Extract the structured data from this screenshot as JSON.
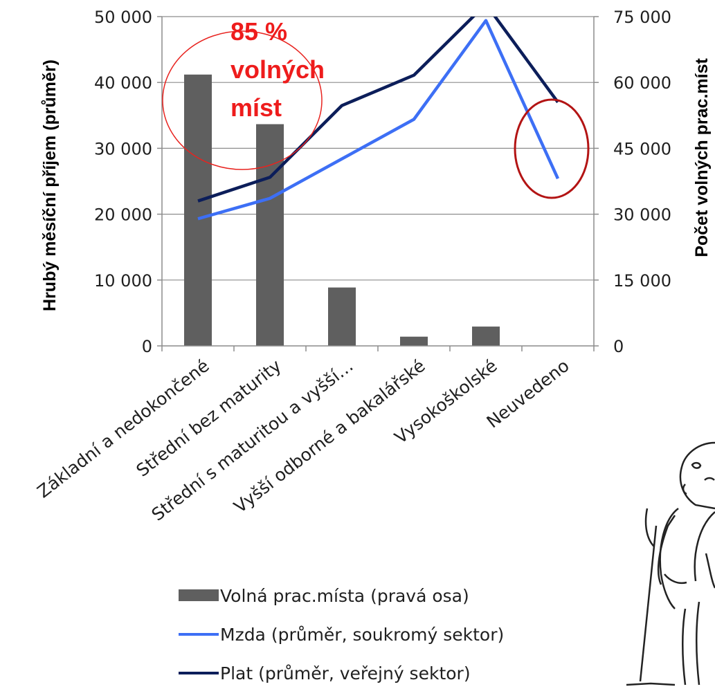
{
  "chart_data": {
    "type": "bar+line",
    "categories": [
      "Základní a nedokončené",
      "Střední bez maturity",
      "Střední s maturitou a vyšší…",
      "Vyšší odborné a bakalářské",
      "Vysokoškolské",
      "Neuvedeno"
    ],
    "bar_series": {
      "name": "Volná prac.místa (pravá osa)",
      "axis": "right",
      "color": "#5f5f5f",
      "values": [
        61800,
        50500,
        13300,
        2100,
        4400,
        null
      ]
    },
    "line_series": [
      {
        "name": "Mzda (průměr, soukromý sektor)",
        "axis": "left",
        "color": "#3d6ff5",
        "values": [
          19300,
          22400,
          28400,
          34400,
          49400,
          25400
        ]
      },
      {
        "name": "Plat (průměr, veřejný sektor)",
        "axis": "left",
        "color": "#0c1e5a",
        "values": [
          22000,
          25600,
          36500,
          41100,
          51900,
          37000
        ]
      }
    ],
    "left_axis": {
      "label": "Hrubý měsíční příjem (průměr)",
      "min": 0,
      "max": 50000,
      "step": 10000,
      "tick_labels": [
        "0",
        "10 000",
        "20 000",
        "30 000",
        "40 000",
        "50 000"
      ]
    },
    "right_axis": {
      "label": "Počet volných prac.míst",
      "min": 0,
      "max": 75000,
      "step": 15000,
      "tick_labels": [
        "0",
        "15 000",
        "30 000",
        "45 000",
        "60 000",
        "75 000"
      ]
    },
    "grid": true,
    "legend_position": "bottom",
    "annotations": [
      {
        "text_lines": [
          "85 %",
          "volných",
          "míst"
        ],
        "color": "#ee1c1c"
      }
    ],
    "highlight_ellipse_colors": [
      "#e8231f",
      "#b31414"
    ]
  }
}
